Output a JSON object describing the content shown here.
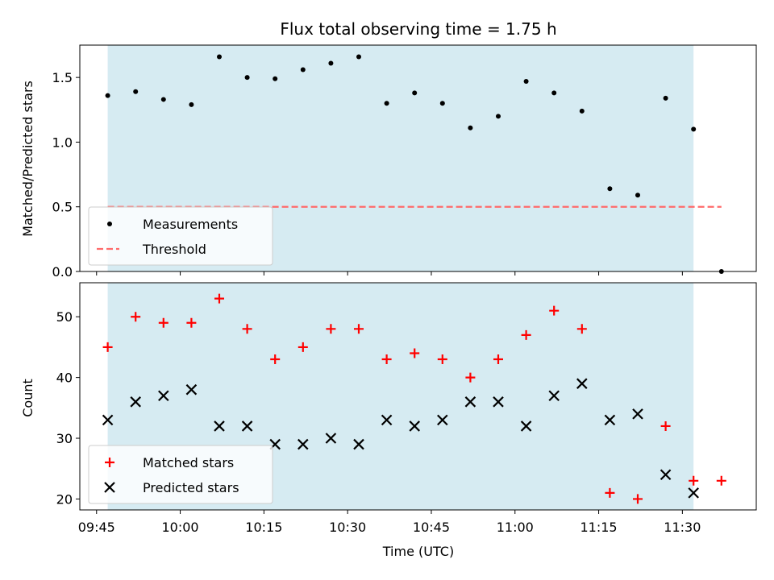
{
  "chart_data": [
    {
      "type": "scatter",
      "title": "Flux total observing time = 1.75 h",
      "xlabel": "",
      "ylabel": "Matched/Predicted stars",
      "ylim": [
        0,
        1.75
      ],
      "yticks": [
        "0.0",
        "0.5",
        "1.0",
        "1.5"
      ],
      "grid": false,
      "legend_position": "lower-left",
      "shaded_span": {
        "from": "09:47",
        "to": "11:32",
        "color": "#add8e6"
      },
      "x": [
        "09:47",
        "09:52",
        "09:57",
        "10:02",
        "10:07",
        "10:12",
        "10:17",
        "10:22",
        "10:27",
        "10:32",
        "10:37",
        "10:42",
        "10:47",
        "10:52",
        "10:57",
        "11:02",
        "11:07",
        "11:12",
        "11:17",
        "11:22",
        "11:27",
        "11:32",
        "11:37"
      ],
      "series": [
        {
          "name": "Measurements",
          "marker": "dot",
          "color": "#000000",
          "values": [
            1.36,
            1.39,
            1.33,
            1.29,
            1.66,
            1.5,
            1.49,
            1.56,
            1.61,
            1.66,
            1.3,
            1.38,
            1.3,
            1.11,
            1.2,
            1.47,
            1.38,
            1.24,
            0.64,
            0.59,
            1.34,
            1.1,
            0.0
          ]
        },
        {
          "name": "Threshold",
          "marker": "dashed-line",
          "color": "#ff6b6b",
          "value": 0.5,
          "x_range": [
            "09:47",
            "11:37"
          ]
        }
      ]
    },
    {
      "type": "scatter",
      "title": "",
      "xlabel": "Time (UTC)",
      "ylabel": "Count",
      "ylim": [
        18.2,
        55.6
      ],
      "yticks": [
        "20",
        "30",
        "40",
        "50"
      ],
      "xticks": [
        "09:45",
        "10:00",
        "10:15",
        "10:30",
        "10:45",
        "11:00",
        "11:15",
        "11:30"
      ],
      "grid": false,
      "legend_position": "lower-left",
      "shaded_span": {
        "from": "09:47",
        "to": "11:32",
        "color": "#add8e6"
      },
      "x": [
        "09:47",
        "09:52",
        "09:57",
        "10:02",
        "10:07",
        "10:12",
        "10:17",
        "10:22",
        "10:27",
        "10:32",
        "10:37",
        "10:42",
        "10:47",
        "10:52",
        "10:57",
        "11:02",
        "11:07",
        "11:12",
        "11:17",
        "11:22",
        "11:27",
        "11:32",
        "11:37"
      ],
      "series": [
        {
          "name": "Matched stars",
          "marker": "plus",
          "color": "#ff0000",
          "values": [
            45,
            50,
            49,
            49,
            53,
            48,
            43,
            45,
            48,
            48,
            43,
            44,
            43,
            40,
            43,
            47,
            51,
            48,
            21,
            20,
            32,
            23,
            23
          ]
        },
        {
          "name": "Predicted stars",
          "marker": "x",
          "color": "#000000",
          "values": [
            33,
            36,
            37,
            38,
            32,
            32,
            29,
            29,
            30,
            29,
            33,
            32,
            33,
            36,
            36,
            32,
            37,
            39,
            33,
            34,
            24,
            21,
            null
          ]
        }
      ]
    }
  ]
}
